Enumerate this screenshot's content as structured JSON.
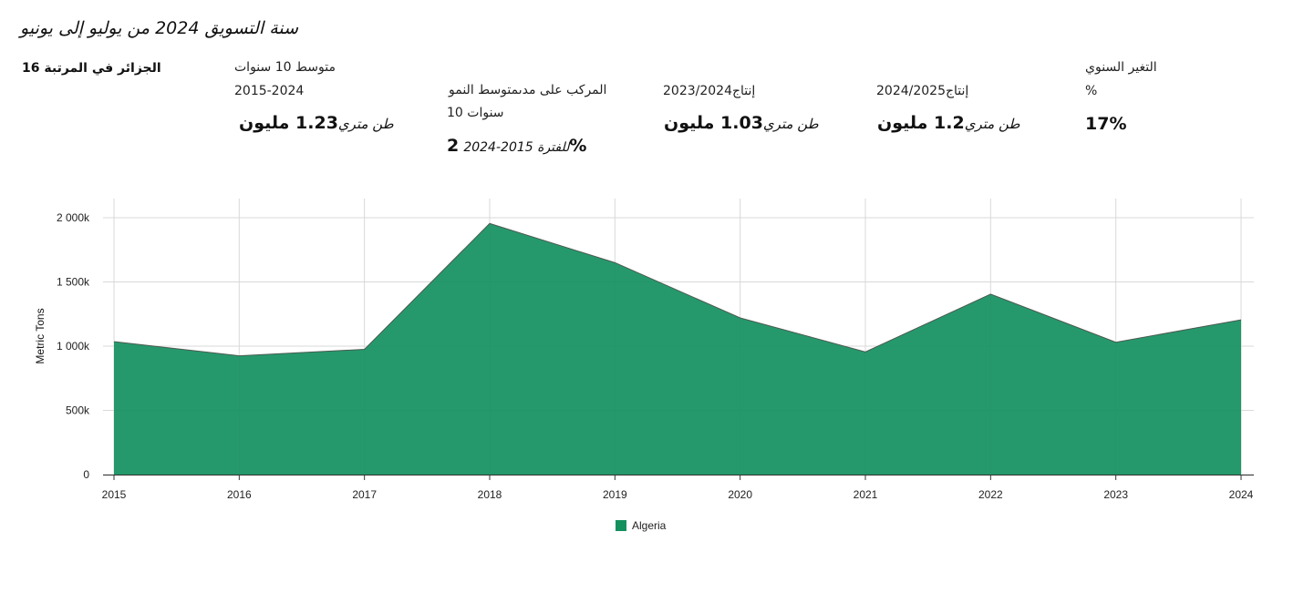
{
  "header": {
    "title": "سنة التسويق 2024 من يوليو إلى يونيو"
  },
  "stats": {
    "rank": "الجزائر في المرتبة 16",
    "avg10_label": "متوسط 10 سنوات",
    "avg10_period": "2015-2024",
    "avg10_value": "1.23 مليون",
    "avg10_unit": "طن متري",
    "cagr_label1": "المركب على مدىمتوسط النمو",
    "cagr_label2": "10 سنوات",
    "cagr_value": "2%",
    "cagr_period": "للفترة 2015-2024",
    "prod2324_label": "2023/2024إنتاج",
    "prod2324_value": "1.03 مليون",
    "prod2324_unit": "طن متري",
    "prod2425_label": "2024/2025إنتاج",
    "prod2425_value": "1.2 مليون",
    "prod2425_unit": "طن متري",
    "yoy_label1": "التغير السنوي",
    "yoy_label2": "%",
    "yoy_value": "17%"
  },
  "colors": {
    "area_fill": "#14905F",
    "area_stroke": "#4a5a52",
    "grid": "#d9d9d9"
  },
  "chart_data": {
    "type": "area",
    "x": [
      2015,
      2016,
      2017,
      2018,
      2019,
      2020,
      2021,
      2022,
      2023,
      2024
    ],
    "series": [
      {
        "name": "Algeria",
        "values": [
          1035000,
          925000,
          975000,
          1955000,
          1650000,
          1220000,
          955000,
          1405000,
          1030000,
          1205000
        ]
      }
    ],
    "ylabel": "Metric Tons",
    "ylim": [
      0,
      2000000
    ],
    "yticks": [
      0,
      500000,
      1000000,
      1500000,
      2000000
    ],
    "ytick_labels": [
      "0",
      "500k",
      "1 000k",
      "1 500k",
      "2 000k"
    ],
    "xtick_labels": [
      "2015",
      "2016",
      "2017",
      "2018",
      "2019",
      "2020",
      "2021",
      "2022",
      "2023",
      "2024"
    ],
    "grid": true,
    "legend": "bottom-center"
  }
}
